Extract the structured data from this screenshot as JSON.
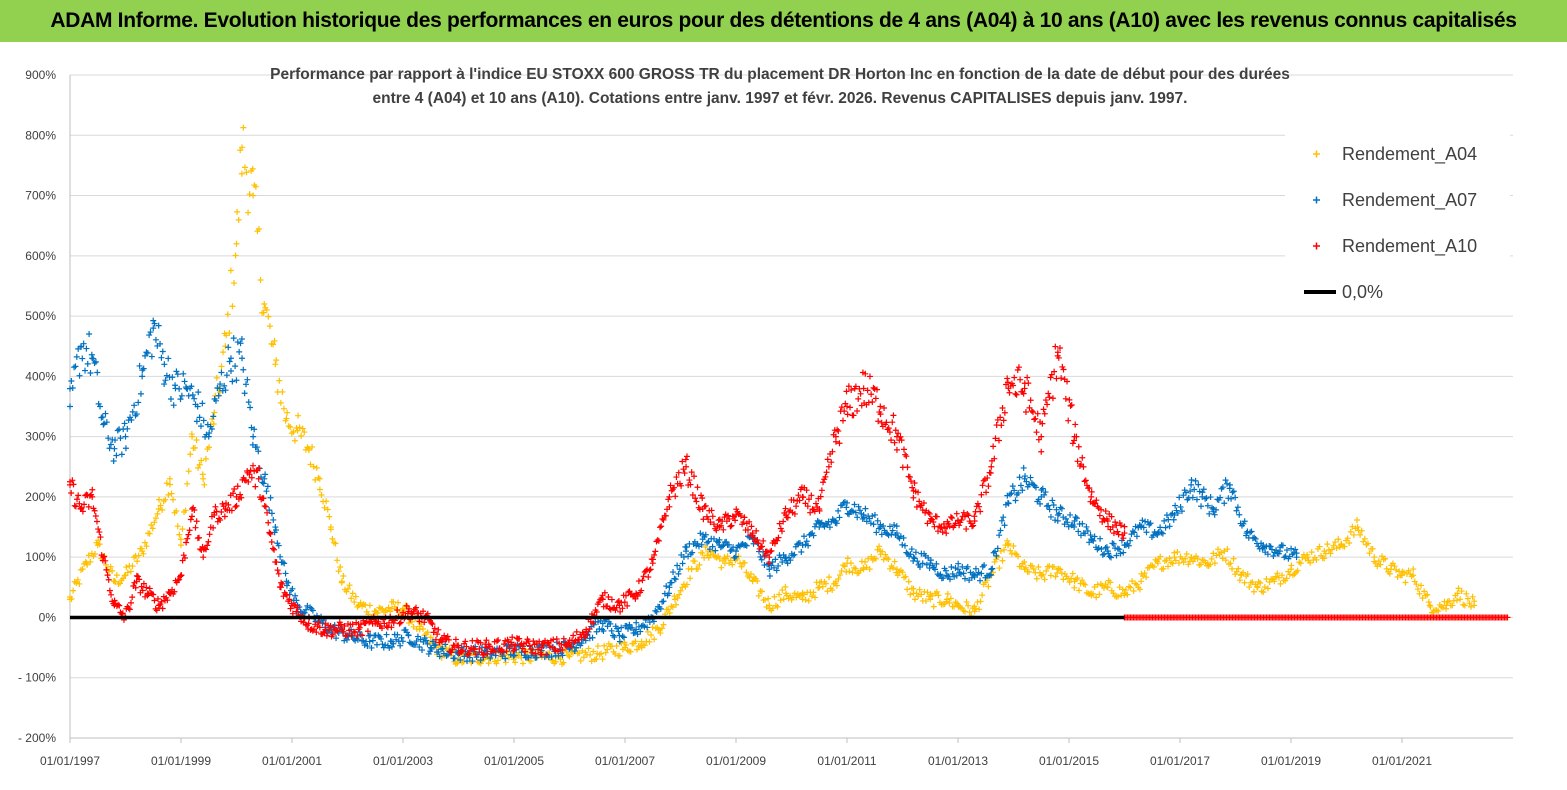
{
  "banner": {
    "title": "ADAM Informe. Evolution historique des performances en euros pour des détentions de 4 ans (A04) à 10 ans (A10) avec les revenus connus capitalisés"
  },
  "colors": {
    "banner_bg": "#92d050",
    "a04": "#ffc000",
    "a07": "#0070c0",
    "a10": "#ff0000",
    "zero": "#000000",
    "grid": "#d9d9d9"
  },
  "chart_data": {
    "type": "scatter",
    "title_lines": [
      "Performance par rapport à l'indice EU STOXX 600 GROSS TR  du placement DR Horton Inc en fonction de la date de début pour des durées",
      "entre 4 (A04) et 10 ans (A10).  Cotations entre janv. 1997 et févr. 2026. Revenus  CAPITALISES depuis janv. 1997."
    ],
    "xlabel": "",
    "ylabel": "",
    "x_range": [
      1997.0,
      2023.0
    ],
    "ylim": [
      -200,
      900
    ],
    "y_ticks": [
      -200,
      -100,
      0,
      100,
      200,
      300,
      400,
      500,
      600,
      700,
      800,
      900
    ],
    "y_tick_labels": [
      "- 200%",
      "- 100%",
      "0%",
      "100%",
      "200%",
      "300%",
      "400%",
      "500%",
      "600%",
      "700%",
      "800%",
      "900%"
    ],
    "x_tick_years": [
      1997,
      1999,
      2001,
      2003,
      2005,
      2007,
      2009,
      2011,
      2013,
      2015,
      2017,
      2019,
      2021
    ],
    "x_tick_labels": [
      "01/01/1997",
      "01/01/1999",
      "01/01/2001",
      "01/01/2003",
      "01/01/2005",
      "01/01/2007",
      "01/01/2009",
      "01/01/2011",
      "01/01/2013",
      "01/01/2015",
      "01/01/2017",
      "01/01/2019",
      "01/01/2021"
    ],
    "legend_position": "top-right",
    "series": [
      {
        "name": "Rendement_A04",
        "color": "#ffc000",
        "marker": "+",
        "x": [
          1997.0,
          1997.3,
          1997.5,
          1997.8,
          1998.0,
          1998.3,
          1998.6,
          1998.8,
          1999.0,
          1999.2,
          1999.4,
          1999.6,
          1999.8,
          2000.0,
          2000.1,
          2000.3,
          2000.5,
          2000.7,
          2000.9,
          2001.1,
          2001.3,
          2001.5,
          2001.7,
          2001.9,
          2002.2,
          2002.5,
          2002.8,
          2003.0,
          2003.3,
          2003.6,
          2004.0,
          2004.5,
          2005.0,
          2005.5,
          2006.0,
          2006.5,
          2007.0,
          2007.3,
          2007.6,
          2007.9,
          2008.2,
          2008.5,
          2008.8,
          2009.0,
          2009.3,
          2009.6,
          2009.9,
          2010.2,
          2010.5,
          2010.8,
          2011.0,
          2011.3,
          2011.6,
          2011.9,
          2012.2,
          2012.5,
          2012.8,
          2013.0,
          2013.3,
          2013.6,
          2013.9,
          2014.2,
          2014.5,
          2014.8,
          2015.1,
          2015.4,
          2015.7,
          2016.0,
          2016.3,
          2016.6,
          2016.9,
          2017.2,
          2017.5,
          2017.8,
          2018.1,
          2018.4,
          2018.7,
          2019.0,
          2019.3,
          2019.6,
          2019.9,
          2020.2,
          2020.5,
          2020.8,
          2021.0,
          2021.2,
          2021.5,
          2021.8,
          2022.0,
          2022.3
        ],
        "values": [
          30,
          90,
          120,
          60,
          70,
          110,
          180,
          230,
          120,
          300,
          230,
          340,
          450,
          620,
          780,
          700,
          520,
          420,
          330,
          310,
          280,
          230,
          150,
          60,
          20,
          10,
          15,
          15,
          -20,
          -50,
          -70,
          -65,
          -65,
          -65,
          -65,
          -60,
          -50,
          -40,
          -20,
          30,
          80,
          110,
          90,
          100,
          60,
          20,
          40,
          30,
          50,
          60,
          90,
          80,
          110,
          80,
          40,
          30,
          30,
          20,
          10,
          70,
          120,
          80,
          70,
          80,
          60,
          40,
          50,
          40,
          60,
          90,
          100,
          100,
          90,
          110,
          70,
          50,
          60,
          80,
          100,
          110,
          120,
          150,
          100,
          80,
          70,
          70,
          20,
          20,
          40,
          20
        ]
      },
      {
        "name": "Rendement_A07",
        "color": "#0070c0",
        "marker": "+",
        "x": [
          1997.0,
          1997.2,
          1997.4,
          1997.6,
          1997.8,
          1998.0,
          1998.3,
          1998.5,
          1998.7,
          1998.9,
          1999.1,
          1999.3,
          1999.5,
          1999.7,
          1999.9,
          2000.1,
          2000.3,
          2000.5,
          2000.7,
          2000.9,
          2001.1,
          2001.4,
          2001.7,
          2002.0,
          2002.4,
          2002.8,
          2003.1,
          2003.5,
          2004.0,
          2004.5,
          2005.0,
          2005.5,
          2006.0,
          2006.3,
          2006.6,
          2006.9,
          2007.2,
          2007.5,
          2007.8,
          2008.1,
          2008.4,
          2008.7,
          2009.0,
          2009.3,
          2009.6,
          2009.9,
          2010.2,
          2010.5,
          2010.8,
          2011.0,
          2011.3,
          2011.6,
          2011.9,
          2012.2,
          2012.5,
          2012.8,
          2013.0,
          2013.3,
          2013.6,
          2013.9,
          2014.2,
          2014.5,
          2014.8,
          2015.1,
          2015.4,
          2015.7,
          2016.0,
          2016.3,
          2016.6,
          2016.9,
          2017.2,
          2017.4,
          2017.6,
          2017.9,
          2018.2,
          2018.5,
          2018.8,
          2019.1
        ],
        "values": [
          350,
          450,
          430,
          320,
          280,
          300,
          400,
          480,
          420,
          380,
          380,
          350,
          300,
          380,
          430,
          430,
          300,
          230,
          150,
          60,
          20,
          0,
          -20,
          -30,
          -40,
          -40,
          -30,
          -50,
          -60,
          -60,
          -55,
          -55,
          -50,
          -30,
          -10,
          -30,
          -20,
          0,
          50,
          110,
          130,
          120,
          110,
          130,
          80,
          100,
          120,
          150,
          160,
          190,
          170,
          150,
          140,
          100,
          90,
          70,
          80,
          70,
          80,
          190,
          230,
          200,
          170,
          160,
          130,
          110,
          120,
          150,
          140,
          170,
          220,
          200,
          180,
          220,
          140,
          120,
          110,
          100
        ]
      },
      {
        "name": "Rendement_A10",
        "color": "#ff0000",
        "marker": "+",
        "x": [
          1997.0,
          1997.2,
          1997.4,
          1997.6,
          1997.8,
          1998.0,
          1998.2,
          1998.4,
          1998.6,
          1998.8,
          1999.0,
          1999.2,
          1999.4,
          1999.6,
          1999.8,
          2000.0,
          2000.2,
          2000.4,
          2000.6,
          2000.8,
          2001.0,
          2001.3,
          2001.6,
          2001.9,
          2002.2,
          2002.5,
          2002.8,
          2003.1,
          2003.4,
          2003.7,
          2004.0,
          2004.5,
          2005.0,
          2005.5,
          2006.0,
          2006.3,
          2006.6,
          2006.9,
          2007.2,
          2007.5,
          2007.8,
          2008.1,
          2008.4,
          2008.7,
          2009.0,
          2009.3,
          2009.6,
          2009.9,
          2010.2,
          2010.5,
          2010.8,
          2011.0,
          2011.3,
          2011.6,
          2011.9,
          2012.2,
          2012.5,
          2012.8,
          2013.0,
          2013.3,
          2013.6,
          2013.9,
          2014.2,
          2014.5,
          2014.8,
          2015.1,
          2015.4,
          2015.7,
          2016.0
        ],
        "values": [
          220,
          180,
          200,
          100,
          20,
          0,
          60,
          40,
          20,
          40,
          70,
          180,
          100,
          170,
          180,
          200,
          240,
          230,
          140,
          50,
          20,
          -10,
          -20,
          -20,
          -20,
          -10,
          -5,
          10,
          0,
          -40,
          -50,
          -50,
          -45,
          -50,
          -45,
          -20,
          30,
          20,
          40,
          90,
          200,
          250,
          180,
          150,
          170,
          140,
          100,
          170,
          200,
          180,
          300,
          350,
          380,
          350,
          300,
          210,
          160,
          150,
          160,
          160,
          250,
          390,
          380,
          300,
          440,
          300,
          200,
          160,
          140
        ]
      },
      {
        "name": "Rendement_A10",
        "color": "#ff0000",
        "marker": "+",
        "x": [
          2016.0,
          2022.9
        ],
        "values": [
          0,
          0
        ]
      },
      {
        "name": "0,0%",
        "color": "#000000",
        "marker": "line",
        "x": [
          1997.0,
          2016.0
        ],
        "values": [
          0,
          0
        ]
      }
    ]
  }
}
